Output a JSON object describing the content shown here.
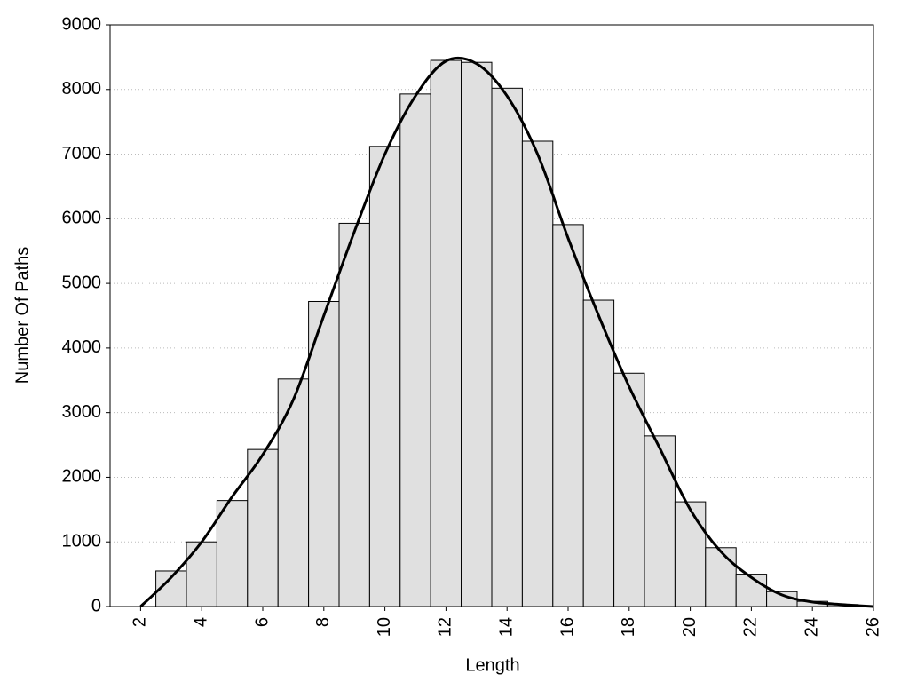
{
  "chart_data": {
    "type": "histogram",
    "x_label": "Length",
    "y_label": "Number Of Paths",
    "bins": [
      2.5,
      3.5,
      4.5,
      5.5,
      6.5,
      7.5,
      8.5,
      9.5,
      10.5,
      11.5,
      12.5,
      13.5,
      14.5,
      15.5,
      16.5,
      17.5,
      18.5,
      19.5,
      20.5,
      21.5,
      22.5,
      23.5,
      24.5,
      25.5
    ],
    "values": [
      550,
      1000,
      1640,
      2430,
      3520,
      4720,
      5930,
      7120,
      7930,
      8450,
      8420,
      8020,
      7200,
      5910,
      4740,
      3610,
      2640,
      1620,
      910,
      500,
      230,
      80,
      30
    ],
    "color": "#e0e0e0",
    "curve": {
      "type": "line",
      "color": "#000000",
      "x": [
        2,
        3,
        4,
        5,
        6,
        7,
        8,
        9,
        10,
        11,
        12,
        13,
        14,
        15,
        16,
        17,
        18,
        19,
        20,
        21,
        22,
        23,
        24,
        25,
        26
      ],
      "values": [
        0,
        450,
        1000,
        1700,
        2350,
        3200,
        4500,
        5800,
        7000,
        7900,
        8440,
        8400,
        7900,
        7000,
        5700,
        4500,
        3400,
        2450,
        1500,
        850,
        450,
        180,
        70,
        30,
        0
      ]
    },
    "xlim": [
      1,
      26
    ],
    "xticks": [
      2,
      4,
      6,
      8,
      10,
      12,
      14,
      16,
      18,
      20,
      22,
      24,
      26
    ],
    "ylim": [
      0,
      9000
    ],
    "yticks": [
      0,
      1000,
      2000,
      3000,
      4000,
      5000,
      6000,
      7000,
      8000,
      9000
    ],
    "grid": true
  }
}
